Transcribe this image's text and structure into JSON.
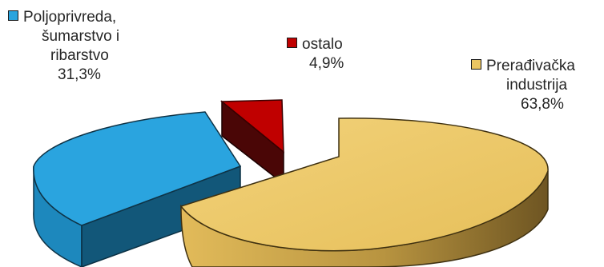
{
  "chart_data": {
    "type": "pie",
    "style": "3d-exploded",
    "legend": "inline-labels",
    "slices": [
      {
        "label": "Poljoprivreda, šumarstvo i ribarstvo",
        "value": 31.3,
        "display": "31,3%",
        "color": "#29a4de"
      },
      {
        "label": "ostalo",
        "value": 4.9,
        "display": "4,9%",
        "color": "#c00000"
      },
      {
        "label": "Prerađivačka industrija",
        "value": 63.8,
        "display": "63,8%",
        "color": "#ecc662"
      }
    ]
  },
  "labels": {
    "agriculture": {
      "lines": [
        "Poljoprivreda,",
        "šumarstvo i",
        "ribarstvo"
      ],
      "value": "31,3%"
    },
    "other": {
      "lines": [
        "ostalo"
      ],
      "value": "4,9%"
    },
    "manufacturing": {
      "lines": [
        "Prerađivačka",
        "industrija"
      ],
      "value": "63,8%"
    }
  }
}
